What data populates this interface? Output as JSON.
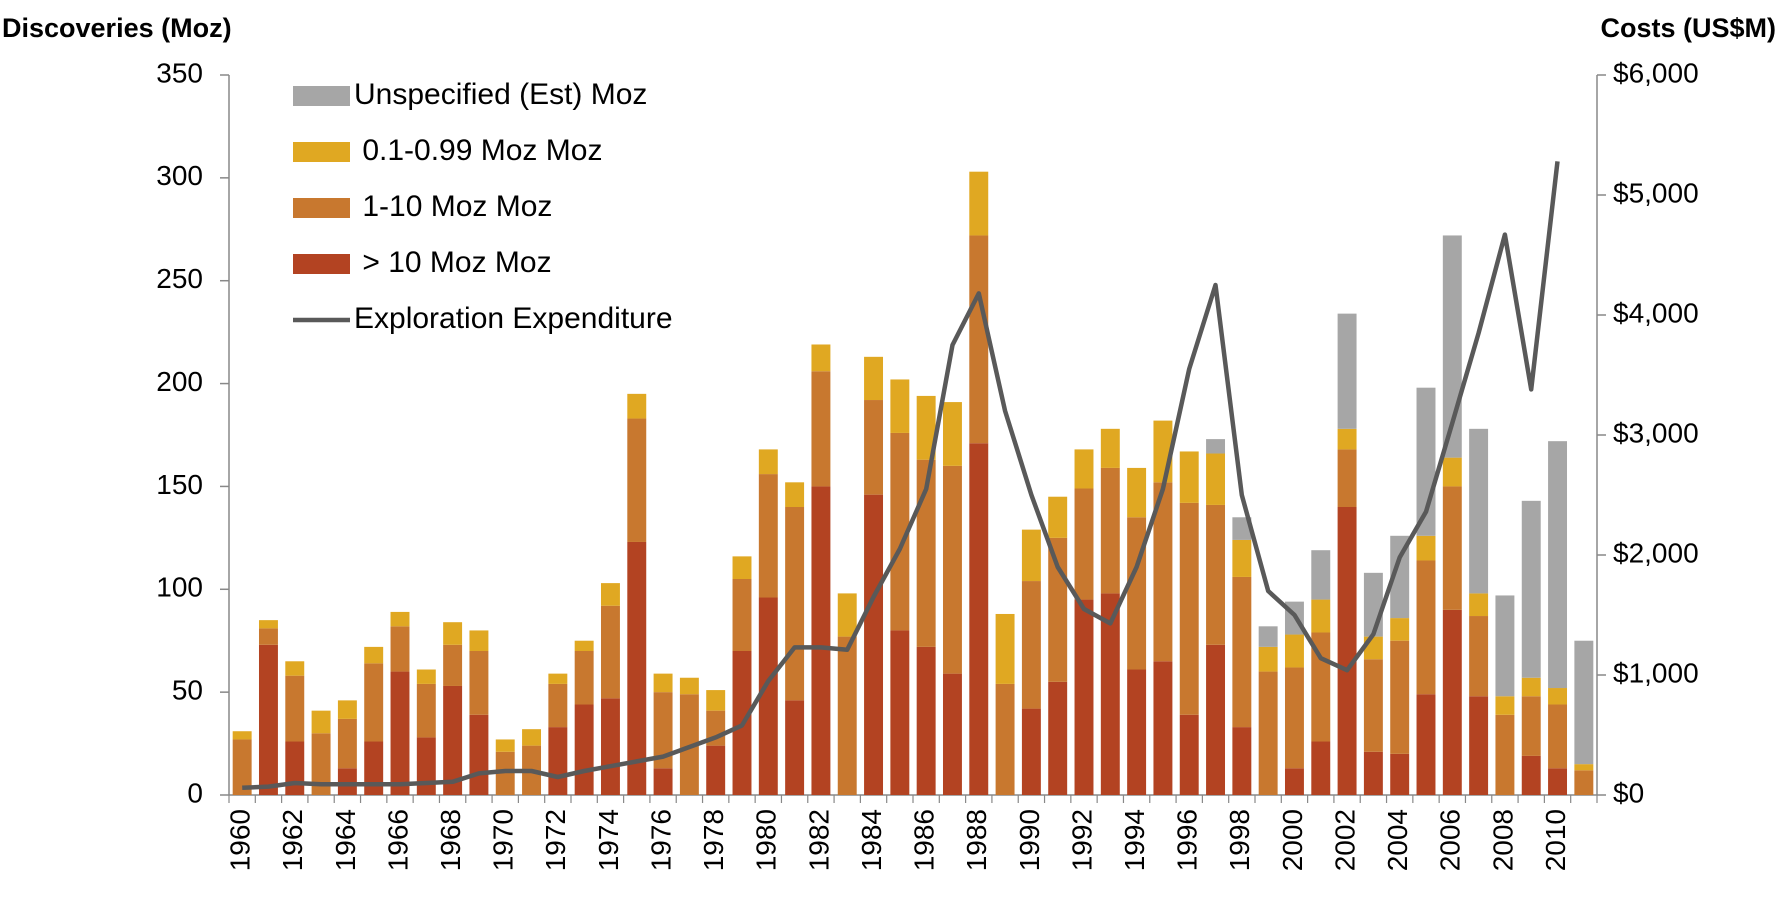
{
  "chart_data": {
    "type": "bar",
    "stacked": true,
    "y_label": "Discoveries (Moz)",
    "y2_label": "Costs (US$M)",
    "categories": [
      "1960",
      null,
      "1962",
      null,
      "1964",
      null,
      "1966",
      null,
      "1968",
      null,
      "1970",
      null,
      "1972",
      null,
      "1974",
      null,
      "1976",
      null,
      "1978",
      null,
      "1980",
      null,
      "1982",
      null,
      "1984",
      null,
      "1986",
      null,
      "1988",
      null,
      "1990",
      null,
      "1992",
      null,
      "1994",
      null,
      "1996",
      null,
      "1998",
      null,
      "2000",
      null,
      "2002",
      null,
      "2004",
      null,
      "2006",
      null,
      "2008",
      null,
      "2010",
      null
    ],
    "series": [
      {
        "name": " > 10 Moz Moz",
        "color": "#b34322",
        "values": [
          0,
          73,
          26,
          0,
          13,
          26,
          60,
          28,
          53,
          39,
          0,
          0,
          33,
          44,
          47,
          123,
          13,
          0,
          24,
          70,
          96,
          46,
          150,
          0,
          146,
          80,
          72,
          59,
          171,
          0,
          42,
          55,
          95,
          98,
          61,
          65,
          39,
          73,
          33,
          0,
          13,
          26,
          140,
          21,
          20,
          49,
          90,
          48,
          0,
          19,
          13,
          0
        ]
      },
      {
        "name": " 1-10 Moz Moz",
        "color": "#c8782f",
        "values": [
          27,
          8,
          32,
          30,
          24,
          38,
          22,
          26,
          20,
          31,
          21,
          24,
          21,
          26,
          45,
          60,
          37,
          49,
          17,
          35,
          60,
          94,
          56,
          77,
          46,
          96,
          91,
          101,
          101,
          54,
          62,
          70,
          54,
          61,
          74,
          87,
          103,
          68,
          73,
          60,
          49,
          53,
          28,
          45,
          55,
          65,
          60,
          39,
          39,
          29,
          31,
          12
        ]
      },
      {
        "name": " 0.1-0.99 Moz Moz",
        "color": "#e0a822",
        "values": [
          4,
          4,
          7,
          11,
          9,
          8,
          7,
          7,
          11,
          10,
          6,
          8,
          5,
          5,
          11,
          12,
          9,
          8,
          10,
          11,
          12,
          12,
          13,
          21,
          21,
          26,
          31,
          31,
          31,
          34,
          25,
          20,
          19,
          19,
          24,
          30,
          25,
          25,
          18,
          12,
          16,
          16,
          10,
          11,
          11,
          12,
          14,
          11,
          9,
          9,
          8,
          3
        ]
      },
      {
        "name": "Unspecified (Est) Moz",
        "color": "#a6a6a6",
        "values": [
          0,
          0,
          0,
          0,
          0,
          0,
          0,
          0,
          0,
          0,
          0,
          0,
          0,
          0,
          0,
          0,
          0,
          0,
          0,
          0,
          0,
          0,
          0,
          0,
          0,
          0,
          0,
          0,
          0,
          0,
          0,
          0,
          0,
          0,
          0,
          0,
          0,
          7,
          11,
          10,
          16,
          24,
          56,
          31,
          40,
          72,
          108,
          80,
          49,
          86,
          120,
          60
        ]
      },
      {
        "name": "Exploration Expenditure",
        "type": "line",
        "axis": "y2",
        "color": "#595959",
        "values": [
          60,
          70,
          100,
          90,
          90,
          90,
          90,
          100,
          110,
          180,
          200,
          200,
          150,
          200,
          240,
          280,
          320,
          400,
          480,
          580,
          950,
          1230,
          1230,
          1210,
          1650,
          2050,
          2550,
          3750,
          4180,
          3200,
          2500,
          1900,
          1550,
          1430,
          1900,
          2550,
          3550,
          4250,
          2500,
          1700,
          1500,
          1140,
          1040,
          1340,
          1980,
          2360,
          3100,
          3850,
          4670,
          3380,
          5280,
          null
        ]
      }
    ],
    "ylim": [
      0,
      350
    ],
    "yticks": [
      0,
      50,
      100,
      150,
      200,
      250,
      300,
      350
    ],
    "y2lim": [
      0,
      6000
    ],
    "y2ticks": [
      {
        "value": 0,
        "label": "$0"
      },
      {
        "value": 1000,
        "label": "$1,000"
      },
      {
        "value": 2000,
        "label": "$2,000"
      },
      {
        "value": 3000,
        "label": "$3,000"
      },
      {
        "value": 4000,
        "label": "$4,000"
      },
      {
        "value": 5000,
        "label": "$5,000"
      },
      {
        "value": 6000,
        "label": "$6,000"
      }
    ],
    "legend": "upper left"
  }
}
